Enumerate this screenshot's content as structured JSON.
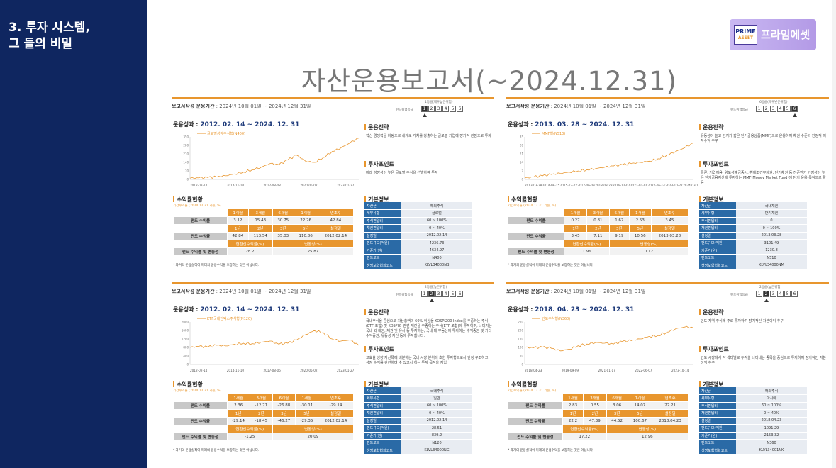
{
  "sidebar": {
    "title": "3. 투자 시스템,\n  그 들의 비밀"
  },
  "logo": {
    "mark_top": "PRIME",
    "mark_bottom": "ASSET",
    "text": "프라임에셋"
  },
  "page_title": "자산운용보고서(~2024.12.31)",
  "common": {
    "report_period_label": "보고서작성 운용기간",
    "report_period": ": 2024년 10월 01일 ~ 2024년 12월 31일",
    "risk_label": "펀드위험등급",
    "risk_levels": [
      "1",
      "2",
      "3",
      "4",
      "5",
      "6"
    ],
    "performance_label": "운용성과 :",
    "strategy_label": "운용전략",
    "point_label": "투자포인트",
    "returns_label": "수익률현황",
    "basic_label": "기본정보",
    "returns_sub": "기간수익률 (2024.12.31 기준, %)",
    "fund_return": "펀드 수익률",
    "since_return": "펀드 수익률 및 변동성",
    "footnote": "* 과거의 운용실적이 미래의 운용수익을 보장하는 것은 아닙니다.",
    "hdr1": [
      "1개월",
      "3개월",
      "6개월",
      "1개월",
      "연초후"
    ],
    "hdr2": [
      "1년",
      "2년",
      "3년",
      "5년",
      "설정일"
    ],
    "hdr3": [
      "연환산수익률(%)",
      "변동성(%)"
    ]
  },
  "panels": [
    {
      "risk_note": "1등급(매우높은위험)",
      "risk_active": 0,
      "period": "2012. 02. 14 ~ 2024. 12. 31",
      "legend": "글로벌성장주식형(N400)",
      "xlabels": [
        "2012-02-14",
        "2014-11-10",
        "2017-08-08",
        "2020-05-02",
        "2023-01-27"
      ],
      "strategy": "혁신 경쟁력을 바탕으로 세계로 가치를 창출하는 글로벌 기업에 장기적 관점으로 투자",
      "point": "미래 성장성이 높은 글로벌 주식을 선별하여 투자",
      "row1": [
        "3.12",
        "15.43",
        "30.75",
        "22.26",
        "42.84"
      ],
      "row2": [
        "42.84",
        "113.54",
        "35.03",
        "110.86",
        "2012.02.14"
      ],
      "row3": [
        "28.2",
        "25.87"
      ],
      "basic": [
        [
          "자산군",
          "해외주식"
        ],
        [
          "세부유형",
          "글로벌"
        ],
        [
          "주식편입비",
          "60 ~ 100%"
        ],
        [
          "채권편입비",
          "0 ~ 40%"
        ],
        [
          "설정일",
          "2012.02.14"
        ],
        [
          "펀드규모(억원)",
          "4236.73"
        ],
        [
          "기준가(원)",
          "4634.97"
        ],
        [
          "펀드코드",
          "N400"
        ],
        [
          "생명보험협회코드",
          "KLVL34000NB"
        ]
      ],
      "chart_data": {
        "type": "line",
        "x_range": [
          "2012-02-14",
          "2024-12-31"
        ],
        "y_range": [
          0,
          350
        ],
        "values": [
          10,
          12,
          15,
          20,
          30,
          45,
          60,
          80,
          100,
          130,
          120,
          160,
          200,
          150,
          140,
          180,
          230,
          260,
          300,
          340
        ]
      }
    },
    {
      "risk_note": "6등급(매우낮은위험)",
      "risk_active": 5,
      "period": "2013. 03. 28 ~ 2024. 12. 31",
      "legend": "MMF형(N510)",
      "xlabels": [
        "2013-03-28",
        "2014-08-15",
        "2015-12-22",
        "2017-06-09",
        "2018-08-28",
        "2019-12-07",
        "2021-01-01",
        "2022-06-14",
        "2023-10-27",
        "2024-03-10"
      ],
      "strategy": "유동성이 높고 만기가 짧은 단기금융상품(MMF)으로 운용하여 채권 수준의 안정적 이자수익 추구",
      "point": "콜론, 기업어음, 양도성예금증서, 환매조건부채권, 단기채권 등 잔존만기 안정성이 높은 단기금융자산에 투자하는 MMF(Money Market Fund)에 단기 운용 목적으로 활용",
      "row1": [
        "0.27",
        "0.81",
        "1.67",
        "2.53",
        "3.45"
      ],
      "row2": [
        "3.45",
        "7.11",
        "9.19",
        "10.56",
        "2013.03.28"
      ],
      "row3": [
        "1.96",
        "0.12"
      ],
      "basic": [
        [
          "자산군",
          "국내채권"
        ],
        [
          "세부유형",
          "단기채권"
        ],
        [
          "주식편입비",
          "0"
        ],
        [
          "채권편입비",
          "0 ~ 100%"
        ],
        [
          "설정일",
          "2013.03.28"
        ],
        [
          "펀드규모(억원)",
          "3101.49"
        ],
        [
          "기준가(원)",
          "1230.8"
        ],
        [
          "펀드코드",
          "N510"
        ],
        [
          "생명보험협회코드",
          "KLVL34000NM"
        ]
      ],
      "chart_data": {
        "type": "line",
        "x_range": [
          "2013-03-28",
          "2024-12-31"
        ],
        "y_range": [
          0,
          35
        ],
        "values": [
          1,
          2,
          3,
          4,
          5,
          6,
          7,
          8,
          9,
          10,
          11,
          12,
          13,
          14,
          15,
          17,
          20,
          23,
          26,
          30
        ]
      }
    },
    {
      "risk_note": "2등급(높은위험)",
      "risk_active": 1,
      "period": "2012. 02. 14 ~ 2024. 12. 31",
      "legend": "ETF국내인덱스주식형(N120)",
      "xlabels": [
        "2012-02-14",
        "2014-11-10",
        "2017-08-06",
        "2020-05-02",
        "2023-01-27"
      ],
      "strategy": "국내주식을 중심으로 자산총액의 60% 이상을 KOSPI200 Index를 추종하는 주식(ETF 포함) 및 KOSPI와 관련 재간을 추종하는 주식(ETF 포함)에 투자하며, 나머지는 국내 외 채권, 채권 및 유사 등 투자하는, 국내 대 부동산에 투자하는 수익증권 및 기타 수익증권, 유동성 자산 등에 투자합니다.",
      "point": "고효율 성장 자산쪽에 배분하는 국내 시장 분위에 초한 투자형으로서 안정 구조하고 성장 수익률 관련하며 수 있고서 하는 투자 목적을 지닙",
      "row1": [
        "2.36",
        "-12.71",
        "-26.88",
        "-30.11",
        "-29.14"
      ],
      "row2": [
        "-29.14",
        "-18.45",
        "-46.27",
        "-29.35",
        "2012.02.14"
      ],
      "row3": [
        "-1.25",
        "20.09"
      ],
      "basic": [
        [
          "자산군",
          "국내주식"
        ],
        [
          "세부유형",
          "일반"
        ],
        [
          "주식편입비",
          "60 ~ 100%"
        ],
        [
          "채권편입비",
          "0 ~ 40%"
        ],
        [
          "설정일",
          "2012.02.14"
        ],
        [
          "펀드규모(억원)",
          "28.51"
        ],
        [
          "기준가(원)",
          "839.2"
        ],
        [
          "펀드코드",
          "N120"
        ],
        [
          "생명보험협회코드",
          "KLVL34000NG"
        ]
      ],
      "chart_data": {
        "type": "line",
        "x_range": [
          "2012-02-14",
          "2024-12-31"
        ],
        "y_range": [
          0,
          2000
        ],
        "values": [
          800,
          850,
          820,
          900,
          870,
          950,
          1000,
          980,
          1050,
          1100,
          950,
          1000,
          1150,
          1400,
          1600,
          1500,
          1200,
          1100,
          1150,
          900
        ]
      }
    },
    {
      "risk_note": "2등급(높은위험)",
      "risk_active": 1,
      "period": "2018. 04. 23 ~ 2024. 12. 31",
      "legend": "인도주식형(N360)",
      "xlabels": [
        "2018-04-23",
        "2019-09-09",
        "2021-01-17",
        "2022-06-07",
        "2023-10-14"
      ],
      "strategy": "인도 지역 주식에 주로 투자하여 장기적인 자본이익 추구",
      "point": "인도 시장에서 각 섹터별로 두각을 나타내는 종목을 중심으로 투자하여 장기적인 자본이익 추구",
      "row1": [
        "2.83",
        "0.55",
        "3.06",
        "14.07",
        "22.21"
      ],
      "row2": [
        "22.2",
        "47.39",
        "44.52",
        "100.67",
        "2018.04.23"
      ],
      "row3": [
        "17.22",
        "12.96"
      ],
      "basic": [
        [
          "자산군",
          "해외주식"
        ],
        [
          "세부유형",
          "아시아"
        ],
        [
          "주식편입비",
          "60 ~ 100%"
        ],
        [
          "채권편입비",
          "0 ~ 40%"
        ],
        [
          "설정일",
          "2018.04.23"
        ],
        [
          "펀드규모(억원)",
          "1091.29"
        ],
        [
          "기준가(원)",
          "2153.32"
        ],
        [
          "펀드코드",
          "N360"
        ],
        [
          "생명보험협회코드",
          "KLVL34001NK"
        ]
      ],
      "chart_data": {
        "type": "line",
        "x_range": [
          "2018-04-23",
          "2024-12-31"
        ],
        "y_range": [
          0,
          250
        ],
        "values": [
          100,
          98,
          102,
          95,
          80,
          90,
          110,
          120,
          130,
          125,
          120,
          135,
          140,
          150,
          165,
          170,
          190,
          210,
          220,
          215
        ]
      }
    }
  ]
}
